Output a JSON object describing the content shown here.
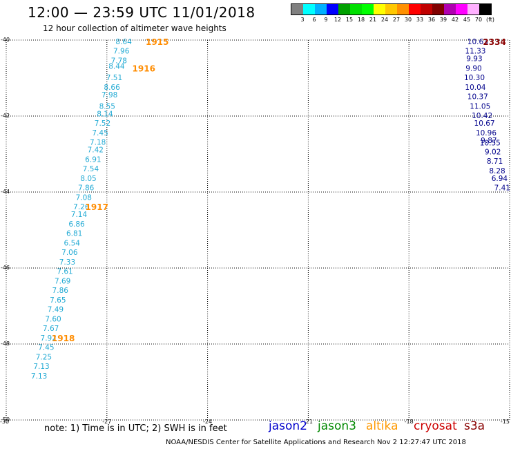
{
  "header": {
    "title": "12:00 — 23:59 UTC 11/01/2018",
    "subtitle": "12 hour collection of altimeter wave heights"
  },
  "legend": {
    "colors": [
      "#808080",
      "#00ffff",
      "#00b0ff",
      "#0000ff",
      "#00a000",
      "#00e000",
      "#00ff00",
      "#ffff00",
      "#ffc800",
      "#ff9000",
      "#ff0000",
      "#c00000",
      "#800000",
      "#b000b0",
      "#ff00ff",
      "#ffb0ff",
      "#000000"
    ],
    "labels": [
      "3",
      "6",
      "9",
      "12",
      "15",
      "18",
      "21",
      "24",
      "27",
      "30",
      "33",
      "36",
      "39",
      "42",
      "45",
      "70",
      "(ft)"
    ]
  },
  "chart_data": {
    "type": "scatter",
    "xlim": [
      -30,
      -15
    ],
    "ylim": [
      -50,
      -40
    ],
    "x_ticks": [
      "-30",
      "-27",
      "-24",
      "-21",
      "-18",
      "-15"
    ],
    "y_ticks": [
      "-40",
      "-42",
      "-44",
      "-46",
      "-48",
      "-50"
    ],
    "tracks": [
      {
        "satellite": "altika",
        "points": [
          {
            "lon": -26.5,
            "lat": -40.05,
            "label": "8.64"
          },
          {
            "lon": -26.57,
            "lat": -40.3,
            "label": "7.96"
          },
          {
            "lon": -26.64,
            "lat": -40.55,
            "label": "7.78"
          },
          {
            "lon": -26.71,
            "lat": -40.7,
            "label": "8.44"
          },
          {
            "lon": -26.78,
            "lat": -41.0,
            "label": "7.51"
          },
          {
            "lon": -26.85,
            "lat": -41.25,
            "label": "8.66"
          },
          {
            "lon": -26.92,
            "lat": -41.45,
            "label": "7.98"
          },
          {
            "lon": -26.99,
            "lat": -41.75,
            "label": "8.55"
          },
          {
            "lon": -27.06,
            "lat": -41.95,
            "label": "8.14"
          },
          {
            "lon": -27.13,
            "lat": -42.2,
            "label": "7.52"
          },
          {
            "lon": -27.2,
            "lat": -42.45,
            "label": "7.45"
          },
          {
            "lon": -27.27,
            "lat": -42.7,
            "label": "7.18"
          },
          {
            "lon": -27.34,
            "lat": -42.9,
            "label": "7.42"
          },
          {
            "lon": -27.41,
            "lat": -43.15,
            "label": "6.91"
          },
          {
            "lon": -27.48,
            "lat": -43.4,
            "label": "7.54"
          },
          {
            "lon": -27.55,
            "lat": -43.65,
            "label": "8.05"
          },
          {
            "lon": -27.62,
            "lat": -43.9,
            "label": "7.86"
          },
          {
            "lon": -27.69,
            "lat": -44.15,
            "label": "7.08"
          },
          {
            "lon": -27.76,
            "lat": -44.4,
            "label": "7.26"
          },
          {
            "lon": -27.83,
            "lat": -44.6,
            "label": "7.14"
          },
          {
            "lon": -27.9,
            "lat": -44.85,
            "label": "6.86"
          },
          {
            "lon": -27.97,
            "lat": -45.1,
            "label": "6.81"
          },
          {
            "lon": -28.04,
            "lat": -45.35,
            "label": "6.54"
          },
          {
            "lon": -28.11,
            "lat": -45.6,
            "label": "7.06"
          },
          {
            "lon": -28.18,
            "lat": -45.85,
            "label": "7.33"
          },
          {
            "lon": -28.25,
            "lat": -46.1,
            "label": "7.61"
          },
          {
            "lon": -28.32,
            "lat": -46.35,
            "label": "7.69"
          },
          {
            "lon": -28.39,
            "lat": -46.6,
            "label": "7.86"
          },
          {
            "lon": -28.46,
            "lat": -46.85,
            "label": "7.65"
          },
          {
            "lon": -28.53,
            "lat": -47.1,
            "label": "7.49"
          },
          {
            "lon": -28.6,
            "lat": -47.35,
            "label": "7.60"
          },
          {
            "lon": -28.67,
            "lat": -47.6,
            "label": "7.67"
          },
          {
            "lon": -28.74,
            "lat": -47.85,
            "label": "7.92"
          },
          {
            "lon": -28.81,
            "lat": -48.1,
            "label": "7.45"
          },
          {
            "lon": -28.88,
            "lat": -48.35,
            "label": "7.25"
          },
          {
            "lon": -28.95,
            "lat": -48.6,
            "label": "7.13"
          },
          {
            "lon": -29.02,
            "lat": -48.85,
            "label": "7.13"
          }
        ],
        "times": [
          {
            "lon": -25.5,
            "lat": -40.05,
            "label": "1915"
          },
          {
            "lon": -25.9,
            "lat": -40.75,
            "label": "1916"
          },
          {
            "lon": -27.3,
            "lat": -44.4,
            "label": "1917"
          },
          {
            "lon": -28.3,
            "lat": -47.85,
            "label": "1918"
          }
        ]
      },
      {
        "satellite": "jason2",
        "points": [
          {
            "lon": -15.95,
            "lat": -40.05,
            "label": "10.63"
          },
          {
            "lon": -16.02,
            "lat": -40.3,
            "label": "11.33"
          },
          {
            "lon": -16.05,
            "lat": -40.5,
            "label": "9.93"
          },
          {
            "lon": -16.07,
            "lat": -40.75,
            "label": "9.90"
          },
          {
            "lon": -16.05,
            "lat": -41.0,
            "label": "10.30"
          },
          {
            "lon": -16.02,
            "lat": -41.25,
            "label": "10.04"
          },
          {
            "lon": -15.95,
            "lat": -41.5,
            "label": "10.37"
          },
          {
            "lon": -15.88,
            "lat": -41.75,
            "label": "11.05"
          },
          {
            "lon": -15.82,
            "lat": -42.0,
            "label": "10.42"
          },
          {
            "lon": -15.75,
            "lat": -42.2,
            "label": "10.67"
          },
          {
            "lon": -15.7,
            "lat": -42.45,
            "label": "10.96"
          },
          {
            "lon": -15.62,
            "lat": -42.65,
            "label": "9.87"
          },
          {
            "lon": -15.58,
            "lat": -42.72,
            "label": "10.55"
          },
          {
            "lon": -15.5,
            "lat": -42.95,
            "label": "9.02"
          },
          {
            "lon": -15.44,
            "lat": -43.2,
            "label": "8.71"
          },
          {
            "lon": -15.37,
            "lat": -43.45,
            "label": "8.28"
          },
          {
            "lon": -15.3,
            "lat": -43.65,
            "label": "6.94"
          },
          {
            "lon": -15.22,
            "lat": -43.9,
            "label": "7.41"
          }
        ],
        "times": [
          {
            "lon": -15.45,
            "lat": -40.05,
            "label": "2334"
          }
        ]
      }
    ]
  },
  "satellites": [
    {
      "name": "jason2",
      "color": "#0000cc",
      "pointColor": "#00008b"
    },
    {
      "name": "jason3",
      "color": "#008800"
    },
    {
      "name": "altika",
      "color": "#ff9900",
      "pointColor": "#22aad4"
    },
    {
      "name": "cryosat",
      "color": "#cc0000"
    },
    {
      "name": "s3a",
      "color": "#880000"
    }
  ],
  "time_color": "#ff8c00",
  "jason2_time_color": "#8b0000",
  "note": "note:  1) Time is in UTC; 2) SWH is in feet",
  "footer": "NOAA/NESDIS Center for Satellite Applications and Research     Nov  2 12:27:47 UTC 2018"
}
